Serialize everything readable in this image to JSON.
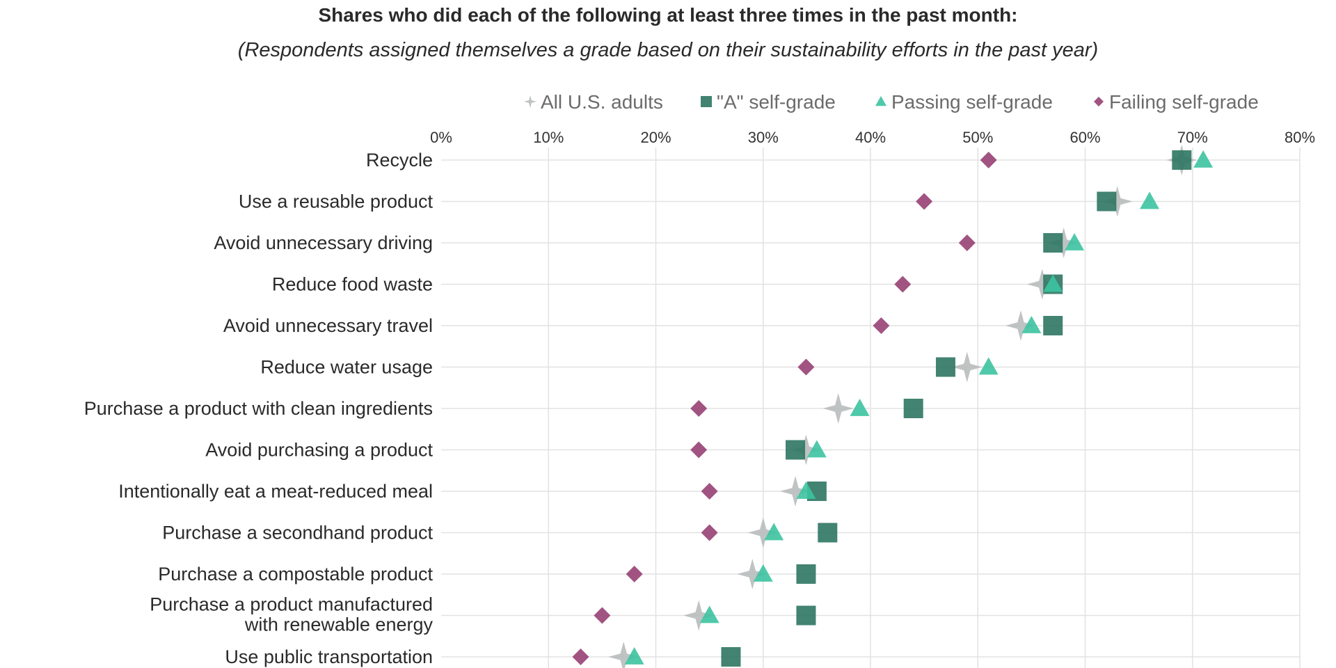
{
  "chart_data": {
    "type": "scatter",
    "title": "Shares who did each of the following at least three times in the past month:",
    "subtitle": "(Respondents assigned themselves a grade based on their sustainability efforts in the past year)",
    "xlim": [
      0,
      80
    ],
    "xticks": [
      "0%",
      "10%",
      "20%",
      "30%",
      "40%",
      "50%",
      "60%",
      "70%",
      "80%"
    ],
    "grid": true,
    "legend_position": "top-right",
    "categories": [
      [
        "Recycle"
      ],
      [
        "Use a reusable product"
      ],
      [
        "Avoid unnecessary driving"
      ],
      [
        "Reduce food waste"
      ],
      [
        "Avoid unnecessary travel"
      ],
      [
        "Reduce water usage"
      ],
      [
        "Purchase a product with clean ingredients"
      ],
      [
        "Avoid purchasing a product"
      ],
      [
        "Intentionally eat a meat-reduced meal"
      ],
      [
        "Purchase a secondhand product"
      ],
      [
        "Purchase a compostable product"
      ],
      [
        "Purchase a product manufactured",
        "with renewable energy"
      ],
      [
        "Use public transportation"
      ]
    ],
    "series": [
      {
        "name": "All U.S. adults",
        "marker": "star",
        "color": "#b9bcbd",
        "values": [
          69,
          63,
          58,
          56,
          54,
          49,
          37,
          34,
          33,
          30,
          29,
          24,
          17
        ]
      },
      {
        "name": "\"A\" self-grade",
        "marker": "square",
        "color": "#2e7562",
        "values": [
          69,
          62,
          57,
          57,
          57,
          47,
          44,
          33,
          35,
          36,
          34,
          34,
          27
        ]
      },
      {
        "name": "Passing self-grade",
        "marker": "triangle",
        "color": "#3cc3a0",
        "values": [
          71,
          66,
          59,
          57,
          55,
          51,
          39,
          35,
          34,
          31,
          30,
          25,
          18
        ]
      },
      {
        "name": "Failing self-grade",
        "marker": "diamond",
        "color": "#9c4a7a",
        "values": [
          51,
          45,
          49,
          43,
          41,
          34,
          24,
          24,
          25,
          25,
          18,
          15,
          13
        ]
      }
    ]
  }
}
